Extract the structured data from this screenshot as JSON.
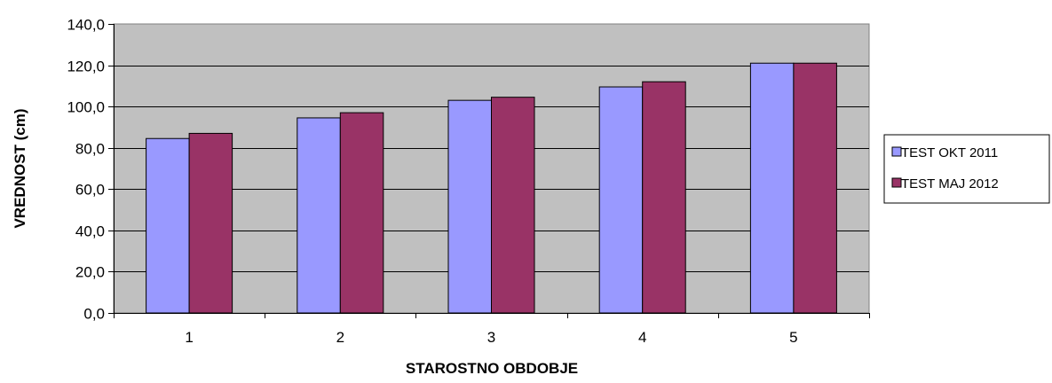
{
  "chart_data": {
    "type": "bar",
    "categories": [
      "1",
      "2",
      "3",
      "4",
      "5"
    ],
    "series": [
      {
        "name": "TEST OKT 2011",
        "values": [
          84.5,
          94.5,
          103.0,
          109.5,
          121.0
        ],
        "color": "#9999ff"
      },
      {
        "name": "TEST MAJ 2012",
        "values": [
          87.0,
          97.0,
          104.5,
          112.0,
          121.0
        ],
        "color": "#993366"
      }
    ],
    "xlabel": "STAROSTNO OBDOBJE",
    "ylabel": "VREDNOST (cm)",
    "ylim": [
      0,
      140
    ],
    "yticks": [
      0,
      20,
      40,
      60,
      80,
      100,
      120,
      140
    ],
    "ytick_labels": [
      "0,0",
      "20,0",
      "40,0",
      "60,0",
      "80,0",
      "100,0",
      "120,0",
      "140,0"
    ],
    "grid": true,
    "legend_position": "right",
    "plot_background": "#c0c0c0"
  }
}
